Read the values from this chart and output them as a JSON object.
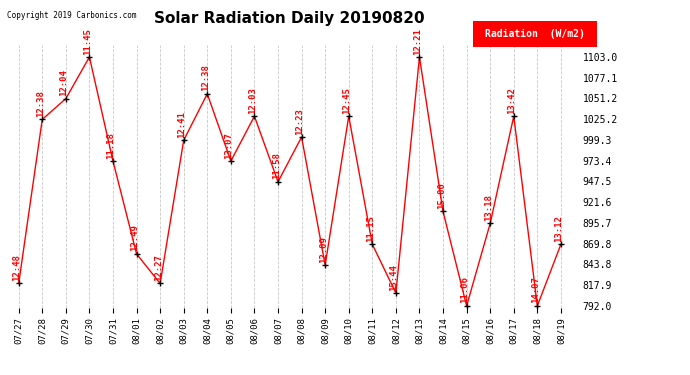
{
  "title": "Solar Radiation Daily 20190820",
  "copyright": "Copyright 2019 Carbonics.com",
  "legend_label": "Radiation  (W/m2)",
  "x_labels": [
    "07/27",
    "07/28",
    "07/29",
    "07/30",
    "07/31",
    "08/01",
    "08/02",
    "08/03",
    "08/04",
    "08/05",
    "08/06",
    "08/07",
    "08/08",
    "08/09",
    "08/10",
    "08/11",
    "08/12",
    "08/13",
    "08/14",
    "08/15",
    "08/16",
    "08/17",
    "08/18",
    "08/19"
  ],
  "y_values": [
    820,
    1025,
    1051,
    1103,
    973,
    857,
    820,
    999,
    1057,
    973,
    1029,
    947,
    1003,
    843,
    1029,
    869,
    808,
    1103,
    910,
    792,
    895,
    1029,
    792,
    869
  ],
  "annotations": [
    "12:48",
    "12:38",
    "12:04",
    "11:45",
    "11:18",
    "12:49",
    "12:27",
    "12:41",
    "12:38",
    "13:07",
    "12:03",
    "11:58",
    "12:23",
    "12:09",
    "12:45",
    "11:15",
    "15:44",
    "12:21",
    "15:00",
    "11:06",
    "13:18",
    "13:42",
    "14:07",
    "13:12"
  ],
  "ylim_min": 792.0,
  "ylim_max": 1103.0,
  "ytick_labels": [
    "792.0",
    "817.9",
    "843.8",
    "869.8",
    "895.7",
    "921.6",
    "947.5",
    "973.4",
    "999.3",
    "1025.2",
    "1051.2",
    "1077.1",
    "1103.0"
  ],
  "ytick_values": [
    792.0,
    817.9,
    843.8,
    869.8,
    895.7,
    921.6,
    947.5,
    973.4,
    999.3,
    1025.2,
    1051.2,
    1077.1,
    1103.0
  ],
  "line_color": "red",
  "marker_color": "black",
  "annotation_color": "red",
  "background_color": "white",
  "grid_color": "#bbbbbb",
  "title_fontsize": 11,
  "annotation_fontsize": 6.5,
  "legend_bg_color": "red",
  "legend_text_color": "white"
}
